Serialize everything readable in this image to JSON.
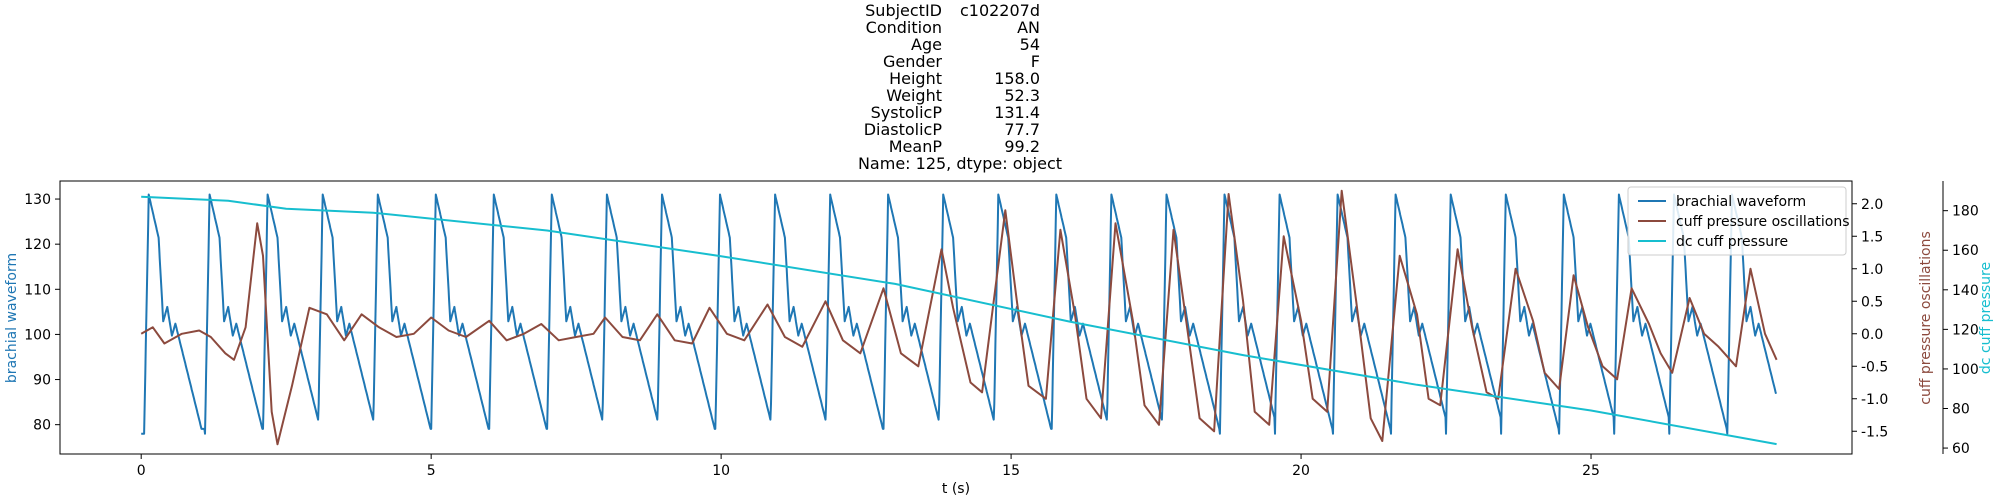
{
  "title": {
    "rows": [
      {
        "key": "SubjectID",
        "value": "c102207d"
      },
      {
        "key": "Condition",
        "value": "AN"
      },
      {
        "key": "Age",
        "value": "54"
      },
      {
        "key": "Gender",
        "value": "F"
      },
      {
        "key": "Height",
        "value": "158.0"
      },
      {
        "key": "Weight",
        "value": "52.3"
      },
      {
        "key": "SystolicP",
        "value": "131.4"
      },
      {
        "key": "DiastolicP",
        "value": "77.7"
      },
      {
        "key": "MeanP",
        "value": "99.2"
      }
    ],
    "footer": "Name: 125, dtype: object"
  },
  "chart_data": {
    "type": "line",
    "xlabel": "t (s)",
    "xlim": [
      -1.4,
      29.5
    ],
    "x_ticks": [
      "0",
      "5",
      "10",
      "15",
      "20",
      "25"
    ],
    "axes": {
      "left": {
        "label": "brachial waveform",
        "color": "#1f77b4",
        "ylim": [
          73.5,
          134
        ],
        "ticks": [
          "80",
          "90",
          "100",
          "110",
          "120",
          "130"
        ]
      },
      "right1": {
        "label": "cuff pressure oscillations",
        "color": "#8c4a3e",
        "ylim": [
          -1.85,
          2.35
        ],
        "ticks": [
          "-1.5",
          "-1.0",
          "-0.5",
          "0.0",
          "0.5",
          "1.0",
          "1.5",
          "2.0"
        ]
      },
      "right2": {
        "label": "dc cuff pressure",
        "color": "#17becf",
        "ylim": [
          57,
          195
        ],
        "ticks": [
          "60",
          "80",
          "100",
          "120",
          "140",
          "160",
          "180"
        ]
      }
    },
    "legend": {
      "position": "top-right",
      "entries": [
        "brachial waveform",
        "cuff pressure oscillations",
        "dc cuff pressure"
      ]
    },
    "series": [
      {
        "name": "brachial waveform",
        "axis": "left",
        "color": "#1f77b4",
        "beats_t": [
          0.05,
          1.1,
          2.1,
          3.05,
          4.0,
          5.0,
          6.0,
          7.0,
          7.95,
          8.9,
          9.9,
          10.85,
          11.8,
          12.8,
          13.75,
          14.7,
          15.7,
          16.65,
          17.6,
          18.6,
          19.55,
          20.55,
          21.55,
          22.5,
          23.45,
          24.45,
          25.4,
          26.35,
          27.35
        ],
        "peak": 131,
        "trough": 78,
        "t_end": 28.2
      },
      {
        "name": "cuff pressure oscillations",
        "axis": "right1",
        "color": "#8c4a3e",
        "points": [
          [
            0,
            0.0
          ],
          [
            0.2,
            0.1
          ],
          [
            0.4,
            -0.15
          ],
          [
            0.7,
            0.0
          ],
          [
            1.0,
            0.05
          ],
          [
            1.2,
            -0.05
          ],
          [
            1.45,
            -0.3
          ],
          [
            1.6,
            -0.4
          ],
          [
            1.8,
            0.1
          ],
          [
            2.0,
            1.7
          ],
          [
            2.1,
            1.2
          ],
          [
            2.25,
            -1.2
          ],
          [
            2.35,
            -1.7
          ],
          [
            2.6,
            -0.8
          ],
          [
            2.9,
            0.4
          ],
          [
            3.2,
            0.3
          ],
          [
            3.5,
            -0.1
          ],
          [
            3.8,
            0.3
          ],
          [
            4.1,
            0.1
          ],
          [
            4.4,
            -0.05
          ],
          [
            4.7,
            0.0
          ],
          [
            5.0,
            0.25
          ],
          [
            5.3,
            0.05
          ],
          [
            5.6,
            -0.05
          ],
          [
            6.0,
            0.2
          ],
          [
            6.3,
            -0.1
          ],
          [
            6.6,
            0.0
          ],
          [
            6.9,
            0.15
          ],
          [
            7.2,
            -0.1
          ],
          [
            7.5,
            -0.05
          ],
          [
            7.8,
            0.0
          ],
          [
            8.0,
            0.25
          ],
          [
            8.3,
            -0.05
          ],
          [
            8.6,
            -0.1
          ],
          [
            8.9,
            0.3
          ],
          [
            9.2,
            -0.1
          ],
          [
            9.5,
            -0.15
          ],
          [
            9.8,
            0.4
          ],
          [
            10.1,
            0.0
          ],
          [
            10.4,
            -0.1
          ],
          [
            10.8,
            0.45
          ],
          [
            11.1,
            -0.05
          ],
          [
            11.4,
            -0.2
          ],
          [
            11.8,
            0.5
          ],
          [
            12.1,
            -0.1
          ],
          [
            12.4,
            -0.3
          ],
          [
            12.8,
            0.7
          ],
          [
            13.1,
            -0.3
          ],
          [
            13.4,
            -0.5
          ],
          [
            13.8,
            1.3
          ],
          [
            14.0,
            0.4
          ],
          [
            14.3,
            -0.75
          ],
          [
            14.5,
            -0.9
          ],
          [
            14.9,
            1.9
          ],
          [
            15.1,
            0.5
          ],
          [
            15.3,
            -0.8
          ],
          [
            15.6,
            -1.0
          ],
          [
            15.85,
            1.6
          ],
          [
            16.1,
            0.3
          ],
          [
            16.3,
            -1.0
          ],
          [
            16.55,
            -1.3
          ],
          [
            16.8,
            1.7
          ],
          [
            17.1,
            0.2
          ],
          [
            17.3,
            -1.1
          ],
          [
            17.55,
            -1.4
          ],
          [
            17.8,
            1.6
          ],
          [
            18.05,
            0.0
          ],
          [
            18.25,
            -1.3
          ],
          [
            18.5,
            -1.5
          ],
          [
            18.75,
            2.15
          ],
          [
            19.0,
            0.5
          ],
          [
            19.2,
            -1.2
          ],
          [
            19.45,
            -1.4
          ],
          [
            19.7,
            1.5
          ],
          [
            20.0,
            0.2
          ],
          [
            20.2,
            -1.0
          ],
          [
            20.45,
            -1.2
          ],
          [
            20.7,
            2.2
          ],
          [
            20.95,
            0.5
          ],
          [
            21.2,
            -1.3
          ],
          [
            21.4,
            -1.65
          ],
          [
            21.7,
            1.2
          ],
          [
            22.0,
            0.3
          ],
          [
            22.2,
            -1.0
          ],
          [
            22.4,
            -1.1
          ],
          [
            22.7,
            1.3
          ],
          [
            22.95,
            0.1
          ],
          [
            23.2,
            -0.9
          ],
          [
            23.4,
            -1.0
          ],
          [
            23.7,
            1.0
          ],
          [
            24.0,
            0.2
          ],
          [
            24.2,
            -0.6
          ],
          [
            24.45,
            -0.85
          ],
          [
            24.7,
            0.9
          ],
          [
            24.95,
            0.1
          ],
          [
            25.2,
            -0.5
          ],
          [
            25.45,
            -0.7
          ],
          [
            25.7,
            0.7
          ],
          [
            26.0,
            0.15
          ],
          [
            26.2,
            -0.3
          ],
          [
            26.4,
            -0.6
          ],
          [
            26.7,
            0.55
          ],
          [
            26.95,
            0.0
          ],
          [
            27.2,
            -0.2
          ],
          [
            27.5,
            -0.5
          ],
          [
            27.75,
            1.0
          ],
          [
            28.0,
            0.0
          ],
          [
            28.2,
            -0.4
          ]
        ]
      },
      {
        "name": "dc cuff pressure",
        "axis": "right2",
        "color": "#17becf",
        "points": [
          [
            0,
            187
          ],
          [
            1.5,
            185
          ],
          [
            2.5,
            181
          ],
          [
            4.0,
            179
          ],
          [
            7,
            170
          ],
          [
            10,
            157
          ],
          [
            13,
            143
          ],
          [
            16,
            124
          ],
          [
            19,
            107
          ],
          [
            22,
            92
          ],
          [
            25,
            79
          ],
          [
            28.2,
            62
          ]
        ]
      }
    ]
  }
}
